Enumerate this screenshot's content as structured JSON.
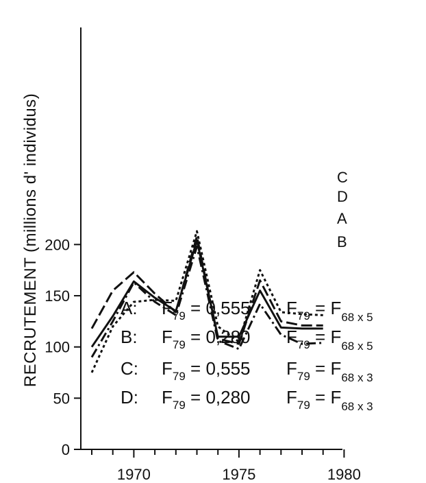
{
  "chart_data": {
    "type": "line",
    "ylabel": "RECRUTEMENT (millions d' individus)",
    "xlabel": "",
    "title": "",
    "xlim": [
      1967,
      1980
    ],
    "ylim": [
      0,
      215
    ],
    "x_ticks": [
      1970,
      1975,
      1980
    ],
    "y_ticks": [
      0,
      50,
      100,
      150,
      200
    ],
    "x_tick_labels": [
      "1970",
      "1975",
      "1980"
    ],
    "y_tick_labels": [
      "0",
      "50",
      "100",
      "150",
      "200"
    ],
    "x": [
      1968,
      1969,
      1970,
      1971,
      1972,
      1973,
      1974,
      1975,
      1976,
      1977,
      1978,
      1979
    ],
    "series": [
      {
        "name": "A",
        "style": "solid",
        "values": [
          100,
          130,
          164,
          148,
          135,
          204,
          110,
          110,
          155,
          119,
          118,
          118
        ]
      },
      {
        "name": "B",
        "style": "dashdot",
        "values": [
          90,
          125,
          163,
          144,
          131,
          198,
          106,
          98,
          142,
          112,
          103,
          104
        ]
      },
      {
        "name": "C",
        "style": "dotted",
        "values": [
          75,
          120,
          144,
          146,
          145,
          213,
          120,
          105,
          175,
          134,
          132,
          131
        ]
      },
      {
        "name": "D",
        "style": "longdash",
        "values": [
          118,
          155,
          173,
          152,
          134,
          208,
          108,
          103,
          165,
          125,
          121,
          121
        ]
      }
    ],
    "legend_lines": [
      {
        "key": "A:",
        "f1_pre": "F",
        "f1_sub": "79",
        "f1_rest": " = 0,555",
        "f2_pre": "F",
        "f2_sub": "79",
        "f2_eq": " = F",
        "f2_sub2": "68 x 5"
      },
      {
        "key": "B:",
        "f1_pre": "F",
        "f1_sub": "79",
        "f1_rest": " = 0,280",
        "f2_pre": "F",
        "f2_sub": "79",
        "f2_eq": " = F",
        "f2_sub2": "68 x 5"
      },
      {
        "key": "C:",
        "f1_pre": "F",
        "f1_sub": "79",
        "f1_rest": " = 0,555",
        "f2_pre": "F",
        "f2_sub": "79",
        "f2_eq": " = F",
        "f2_sub2": "68 x 3"
      },
      {
        "key": "D:",
        "f1_pre": "F",
        "f1_sub": "79",
        "f1_rest": " = 0,280",
        "f2_pre": "F",
        "f2_sub": "79",
        "f2_eq": " = F",
        "f2_sub2": "68 x 3"
      }
    ],
    "end_label_order": [
      "C",
      "D",
      "A",
      "B"
    ],
    "grid": false,
    "colors": {
      "line": "#111111",
      "axis": "#111111"
    }
  }
}
